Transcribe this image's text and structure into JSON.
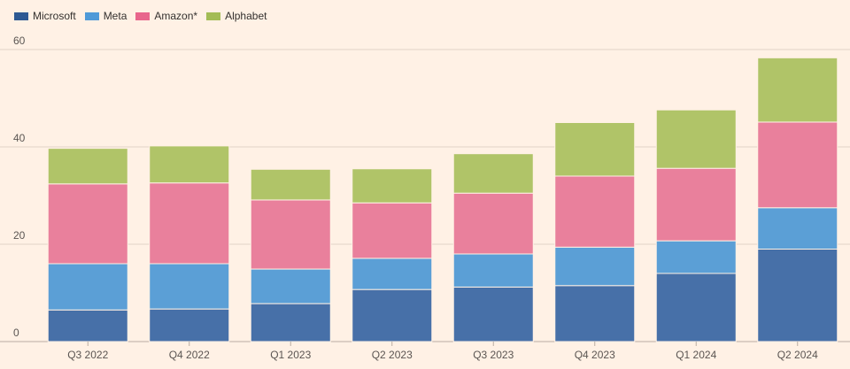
{
  "chart_data": {
    "type": "bar",
    "stacked": true,
    "categories": [
      "Q3 2022",
      "Q4 2022",
      "Q1 2023",
      "Q2 2023",
      "Q3 2023",
      "Q4 2023",
      "Q1 2024",
      "Q2 2024"
    ],
    "series": [
      {
        "name": "Microsoft",
        "color": "#4770a8",
        "values": [
          6.5,
          6.7,
          7.8,
          10.7,
          11.2,
          11.5,
          14.0,
          19.0
        ]
      },
      {
        "name": "Meta",
        "color": "#5b9fd6",
        "values": [
          9.5,
          9.3,
          7.1,
          6.4,
          6.8,
          7.9,
          6.7,
          8.5
        ]
      },
      {
        "name": "Amazon*",
        "color": "#e9809c",
        "values": [
          16.4,
          16.6,
          14.2,
          11.4,
          12.5,
          14.6,
          14.9,
          17.6
        ]
      },
      {
        "name": "Alphabet",
        "color": "#b0c468",
        "values": [
          7.3,
          7.6,
          6.3,
          7.0,
          8.1,
          11.0,
          12.0,
          13.2
        ]
      }
    ],
    "ylim": [
      0,
      60
    ],
    "yticks": [
      0,
      20,
      40,
      60
    ],
    "grid": true,
    "legend": "top-left"
  }
}
